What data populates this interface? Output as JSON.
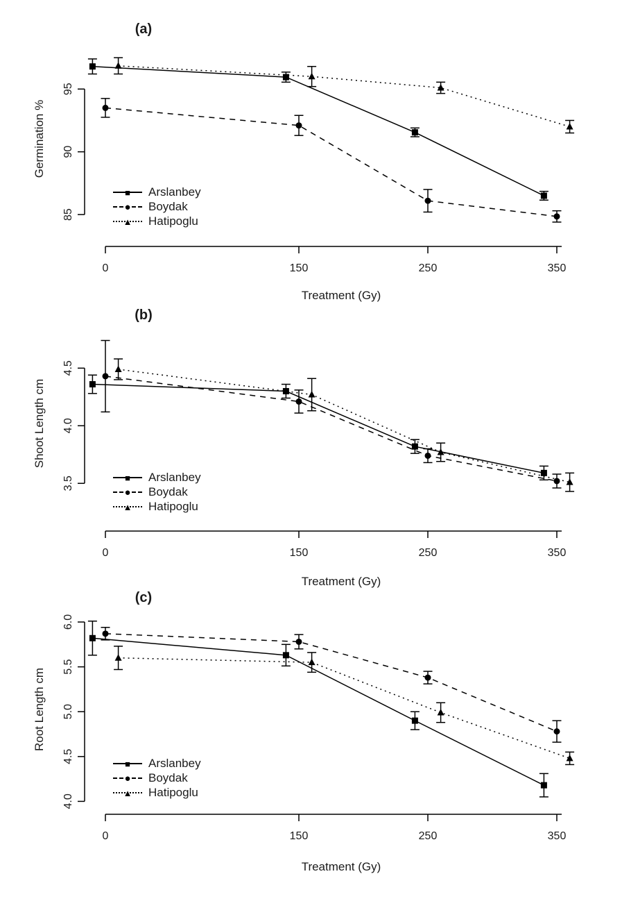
{
  "figure": {
    "background": "#ffffff",
    "foreground": "#000000",
    "text_color": "#1b1b1b"
  },
  "legend_markers": {
    "square": "■",
    "circle": "●",
    "triangle": "▲"
  },
  "chart_data": [
    {
      "type": "line",
      "panel_label": "(a)",
      "xlabel": "Treatment (Gy)",
      "ylabel": "Germination %",
      "x": [
        0,
        150,
        250,
        350
      ],
      "xtick_labels": [
        "0",
        "150",
        "250",
        "350"
      ],
      "yticks": [
        85,
        90,
        95
      ],
      "ytick_labels": [
        "85",
        "90",
        "95"
      ],
      "ylim": [
        82.46,
        97.67
      ],
      "xlim": [
        -16,
        369
      ],
      "grid": false,
      "legend_position": "inside-lower-left",
      "series": [
        {
          "name": "Arslanbey",
          "marker": "square",
          "line_style": "solid",
          "x_offset": -10,
          "values": [
            96.8,
            95.95,
            91.55,
            86.5
          ],
          "errors": [
            0.6,
            0.4,
            0.35,
            0.35
          ]
        },
        {
          "name": "Boydak",
          "marker": "circle",
          "line_style": "dashed",
          "x_offset": 0,
          "values": [
            93.5,
            92.1,
            86.1,
            84.85
          ],
          "errors": [
            0.75,
            0.8,
            0.9,
            0.45
          ]
        },
        {
          "name": "Hatipoglu",
          "marker": "triangle",
          "line_style": "dotted",
          "x_offset": 10,
          "values": [
            96.85,
            96.0,
            95.1,
            92.0
          ],
          "errors": [
            0.65,
            0.8,
            0.45,
            0.5
          ]
        }
      ]
    },
    {
      "type": "line",
      "panel_label": "(b)",
      "xlabel": "Treatment (Gy)",
      "ylabel": "Shoot Length cm",
      "x": [
        0,
        150,
        250,
        350
      ],
      "xtick_labels": [
        "0",
        "150",
        "250",
        "350"
      ],
      "yticks": [
        3.5,
        4.0,
        4.5
      ],
      "ytick_labels": [
        "3.5",
        "4.0",
        "4.5"
      ],
      "ylim": [
        3.086,
        4.773
      ],
      "xlim": [
        -16,
        369
      ],
      "grid": false,
      "legend_position": "inside-lower-left",
      "series": [
        {
          "name": "Arslanbey",
          "marker": "square",
          "line_style": "solid",
          "x_offset": -10,
          "values": [
            4.36,
            4.3,
            3.82,
            3.59
          ],
          "errors": [
            0.08,
            0.06,
            0.06,
            0.06
          ]
        },
        {
          "name": "Boydak",
          "marker": "circle",
          "line_style": "dashed",
          "x_offset": 0,
          "values": [
            4.43,
            4.21,
            3.74,
            3.52
          ],
          "errors": [
            0.31,
            0.1,
            0.06,
            0.06
          ]
        },
        {
          "name": "Hatipoglu",
          "marker": "triangle",
          "line_style": "dotted",
          "x_offset": 10,
          "values": [
            4.49,
            4.27,
            3.77,
            3.51
          ],
          "errors": [
            0.09,
            0.14,
            0.08,
            0.08
          ]
        }
      ]
    },
    {
      "type": "line",
      "panel_label": "(c)",
      "xlabel": "Treatment (Gy)",
      "ylabel": "Root Length cm",
      "x": [
        0,
        150,
        250,
        350
      ],
      "xtick_labels": [
        "0",
        "150",
        "250",
        "350"
      ],
      "yticks": [
        4.0,
        4.5,
        5.0,
        5.5,
        6.0
      ],
      "ytick_labels": [
        "4.0",
        "4.5",
        "5.0",
        "5.5",
        "6.0"
      ],
      "ylim": [
        3.856,
        6.124
      ],
      "xlim": [
        -16,
        369
      ],
      "grid": false,
      "legend_position": "inside-lower-left",
      "series": [
        {
          "name": "Arslanbey",
          "marker": "square",
          "line_style": "solid",
          "x_offset": -10,
          "values": [
            5.82,
            5.63,
            4.9,
            4.18
          ],
          "errors": [
            0.19,
            0.12,
            0.1,
            0.13
          ]
        },
        {
          "name": "Boydak",
          "marker": "circle",
          "line_style": "dashed",
          "x_offset": 0,
          "values": [
            5.87,
            5.78,
            5.38,
            4.78
          ],
          "errors": [
            0.07,
            0.08,
            0.07,
            0.12
          ]
        },
        {
          "name": "Hatipoglu",
          "marker": "triangle",
          "line_style": "dotted",
          "x_offset": 10,
          "values": [
            5.6,
            5.55,
            4.99,
            4.48
          ],
          "errors": [
            0.13,
            0.11,
            0.11,
            0.07
          ]
        }
      ]
    }
  ]
}
